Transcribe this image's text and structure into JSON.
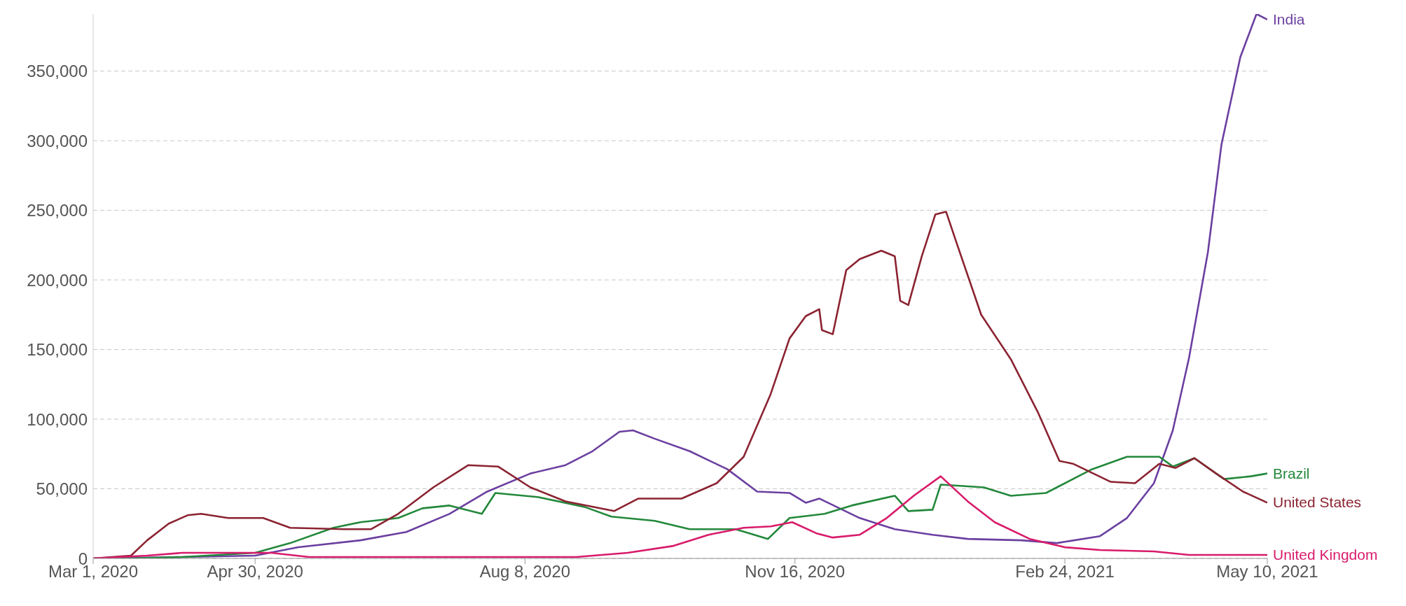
{
  "chart_data": {
    "type": "line",
    "xlim": [
      "2020-03-01",
      "2021-05-10"
    ],
    "ylim": [
      0,
      391000
    ],
    "xticks": [
      {
        "value": "2020-03-01",
        "label": "Mar 1, 2020"
      },
      {
        "value": "2020-04-30",
        "label": "Apr 30, 2020"
      },
      {
        "value": "2020-08-08",
        "label": "Aug 8, 2020"
      },
      {
        "value": "2020-11-16",
        "label": "Nov 16, 2020"
      },
      {
        "value": "2021-02-24",
        "label": "Feb 24, 2021"
      },
      {
        "value": "2021-05-10",
        "label": "May 10, 2021"
      }
    ],
    "yticks": [
      {
        "value": 0,
        "label": "0"
      },
      {
        "value": 50000,
        "label": "50,000"
      },
      {
        "value": 100000,
        "label": "100,000"
      },
      {
        "value": 150000,
        "label": "150,000"
      },
      {
        "value": 200000,
        "label": "200,000"
      },
      {
        "value": 250000,
        "label": "250,000"
      },
      {
        "value": 300000,
        "label": "300,000"
      },
      {
        "value": 350000,
        "label": "350,000"
      }
    ],
    "grid": "y",
    "marker": "none",
    "line_style": "solid",
    "series": [
      {
        "name": "India",
        "color": "#6b3fa0",
        "x": [
          "2020-03-01",
          "2020-04-03",
          "2020-04-30",
          "2020-05-16",
          "2020-06-08",
          "2020-06-25",
          "2020-07-11",
          "2020-07-25",
          "2020-08-10",
          "2020-08-23",
          "2020-09-02",
          "2020-09-12",
          "2020-09-17",
          "2020-09-25",
          "2020-10-08",
          "2020-10-22",
          "2020-11-02",
          "2020-11-14",
          "2020-11-20",
          "2020-11-25",
          "2020-12-10",
          "2020-12-23",
          "2021-01-06",
          "2021-01-19",
          "2021-02-08",
          "2021-02-21",
          "2021-03-09",
          "2021-03-19",
          "2021-03-29",
          "2021-04-05",
          "2021-04-11",
          "2021-04-18",
          "2021-04-23",
          "2021-04-30",
          "2021-05-06",
          "2021-05-10"
        ],
        "values": [
          0,
          1000,
          2000,
          8000,
          13000,
          19000,
          32000,
          48000,
          61000,
          67000,
          77000,
          91000,
          92000,
          86000,
          77000,
          64000,
          48000,
          47000,
          40000,
          43000,
          29000,
          21000,
          17000,
          14000,
          13000,
          11000,
          16000,
          29000,
          54000,
          92000,
          144000,
          220000,
          297000,
          360000,
          391000,
          387000
        ]
      },
      {
        "name": "Brazil",
        "color": "#23883b",
        "x": [
          "2020-03-01",
          "2020-03-15",
          "2020-04-03",
          "2020-04-30",
          "2020-05-13",
          "2020-05-29",
          "2020-06-08",
          "2020-06-22",
          "2020-07-01",
          "2020-07-11",
          "2020-07-23",
          "2020-07-28",
          "2020-08-13",
          "2020-08-30",
          "2020-09-09",
          "2020-09-25",
          "2020-10-08",
          "2020-10-25",
          "2020-11-06",
          "2020-11-14",
          "2020-11-27",
          "2020-12-07",
          "2020-12-23",
          "2020-12-28",
          "2021-01-06",
          "2021-01-09",
          "2021-01-25",
          "2021-02-04",
          "2021-02-17",
          "2021-03-06",
          "2021-03-19",
          "2021-03-31",
          "2021-04-05",
          "2021-04-13",
          "2021-04-24",
          "2021-05-04",
          "2021-05-10"
        ],
        "values": [
          0,
          0,
          1000,
          4000,
          11000,
          22000,
          26000,
          29000,
          36000,
          38000,
          32000,
          47000,
          44000,
          37000,
          30000,
          27000,
          21000,
          21000,
          14000,
          29000,
          32000,
          38000,
          45000,
          34000,
          35000,
          53000,
          51000,
          45000,
          47000,
          64000,
          73000,
          73000,
          66000,
          72000,
          57000,
          59000,
          61000
        ]
      },
      {
        "name": "United States",
        "color": "#8b2331",
        "x": [
          "2020-03-01",
          "2020-03-15",
          "2020-03-21",
          "2020-03-29",
          "2020-04-05",
          "2020-04-10",
          "2020-04-20",
          "2020-05-03",
          "2020-05-13",
          "2020-06-02",
          "2020-06-12",
          "2020-06-22",
          "2020-07-05",
          "2020-07-18",
          "2020-07-29",
          "2020-08-10",
          "2020-08-23",
          "2020-09-10",
          "2020-09-19",
          "2020-10-05",
          "2020-10-18",
          "2020-10-28",
          "2020-11-07",
          "2020-11-14",
          "2020-11-20",
          "2020-11-25",
          "2020-11-26",
          "2020-11-30",
          "2020-12-05",
          "2020-12-10",
          "2020-12-18",
          "2020-12-23",
          "2020-12-25",
          "2020-12-28",
          "2021-01-02",
          "2021-01-07",
          "2021-01-11",
          "2021-01-15",
          "2021-01-24",
          "2021-02-04",
          "2021-02-14",
          "2021-02-22",
          "2021-02-27",
          "2021-03-13",
          "2021-03-22",
          "2021-03-31",
          "2021-04-06",
          "2021-04-13",
          "2021-04-21",
          "2021-05-01",
          "2021-05-10"
        ],
        "values": [
          0,
          2000,
          13000,
          25000,
          31000,
          32000,
          29000,
          29000,
          22000,
          21000,
          21000,
          32000,
          51000,
          67000,
          66000,
          51000,
          41000,
          34000,
          43000,
          43000,
          54000,
          73000,
          118000,
          158000,
          174000,
          179000,
          164000,
          161000,
          207000,
          215000,
          221000,
          217000,
          185000,
          182000,
          217000,
          247000,
          249000,
          226000,
          175000,
          143000,
          105000,
          70000,
          68000,
          55000,
          54000,
          68000,
          65000,
          72000,
          61000,
          48000,
          40000
        ]
      },
      {
        "name": "United Kingdom",
        "color": "#d81b6b",
        "x": [
          "2020-03-01",
          "2020-03-21",
          "2020-04-03",
          "2020-05-06",
          "2020-05-20",
          "2020-06-25",
          "2020-08-27",
          "2020-09-15",
          "2020-10-02",
          "2020-10-15",
          "2020-10-28",
          "2020-11-07",
          "2020-11-15",
          "2020-11-24",
          "2020-11-30",
          "2020-12-10",
          "2020-12-20",
          "2020-12-30",
          "2021-01-09",
          "2021-01-19",
          "2021-01-29",
          "2021-02-11",
          "2021-02-24",
          "2021-03-09",
          "2021-03-29",
          "2021-04-11",
          "2021-05-10"
        ],
        "values": [
          0,
          2000,
          4000,
          4000,
          1000,
          1000,
          1000,
          4000,
          9000,
          17000,
          22000,
          23000,
          26000,
          18000,
          15000,
          17000,
          29000,
          45000,
          59000,
          41000,
          26000,
          14000,
          8000,
          6000,
          5000,
          2500,
          2500
        ]
      }
    ]
  }
}
